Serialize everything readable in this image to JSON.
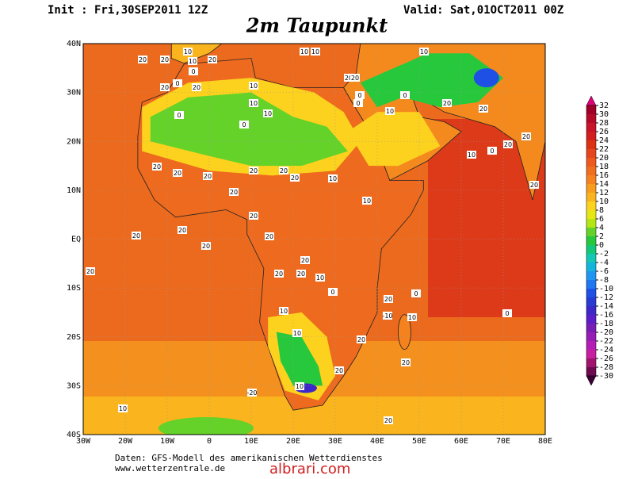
{
  "header": {
    "init": "Init : Fri,30SEP2011 12Z",
    "valid": "Valid: Sat,01OCT2011 00Z",
    "title": "2m Taupunkt"
  },
  "map": {
    "lon_labels": [
      "30W",
      "20W",
      "10W",
      "0",
      "10E",
      "20E",
      "30E",
      "40E",
      "50E",
      "60E",
      "70E",
      "80E"
    ],
    "lat_labels": [
      "40N",
      "30N",
      "20N",
      "10N",
      "EQ",
      "10S",
      "20S",
      "30S",
      "40S"
    ],
    "contour_labels": [
      20,
      20,
      10,
      20,
      10,
      10,
      10,
      0,
      20,
      10,
      0,
      0,
      20,
      10,
      10,
      0,
      20,
      20,
      0,
      0,
      0,
      10,
      20,
      20,
      20,
      20,
      20,
      10,
      20,
      20,
      20,
      10,
      20,
      20,
      20,
      20,
      20,
      20,
      10,
      0,
      10,
      20,
      0,
      -10,
      10,
      10,
      10,
      10,
      20,
      -20,
      0,
      0,
      10,
      20,
      20,
      20,
      20,
      20,
      10,
      20,
      20,
      20,
      20,
      20
    ]
  },
  "colorbar": {
    "ticks": [
      32,
      30,
      28,
      26,
      24,
      22,
      20,
      18,
      16,
      14,
      12,
      10,
      8,
      6,
      4,
      2,
      0,
      -2,
      -4,
      -6,
      -8,
      -10,
      -12,
      -14,
      -16,
      -18,
      -20,
      -22,
      -24,
      -26,
      -28,
      -30
    ],
    "colors": [
      "#a00028",
      "#b40a28",
      "#c81428",
      "#d21e1e",
      "#dc3214",
      "#e6461e",
      "#ee5a1e",
      "#f06e1e",
      "#f4821e",
      "#f89c1e",
      "#fab41e",
      "#fcd21e",
      "#e6e614",
      "#b4e614",
      "#64d228",
      "#28c83c",
      "#14c878",
      "#14c8b4",
      "#14b4dc",
      "#1e96f0",
      "#1e78f0",
      "#1e50e6",
      "#283cd2",
      "#3c28c8",
      "#5a1ec8",
      "#781eb4",
      "#961eb4",
      "#b41eb4",
      "#c81ea0",
      "#a0146e",
      "#6e0a50"
    ]
  },
  "footer": {
    "source": "Daten: GFS-Modell des amerikanischen Wetterdienstes",
    "url": "www.wetterzentrale.de",
    "watermark": "albrari.com"
  }
}
